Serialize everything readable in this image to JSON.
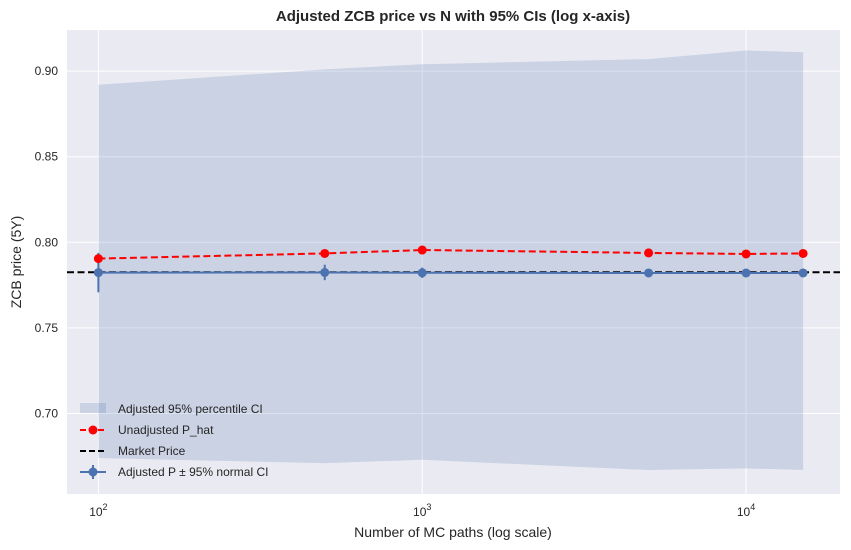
{
  "chart_data": {
    "type": "line",
    "title": "Adjusted ZCB price vs N with 95% CIs (log x-axis)",
    "xlabel": "Number of MC paths (log scale)",
    "ylabel": "ZCB price (5Y)",
    "xscale": "log",
    "xlim": [
      80,
      19500
    ],
    "ylim": [
      0.653,
      0.924
    ],
    "x_ticks": [
      100,
      1000,
      10000
    ],
    "x_tick_labels": [
      {
        "base": "10",
        "exp": "2"
      },
      {
        "base": "10",
        "exp": "3"
      },
      {
        "base": "10",
        "exp": "4"
      }
    ],
    "y_ticks": [
      0.7,
      0.75,
      0.8,
      0.85,
      0.9
    ],
    "y_tick_labels": [
      "0.70",
      "0.75",
      "0.80",
      "0.85",
      "0.90"
    ],
    "grid": true,
    "legend_position": "lower-left",
    "x": [
      100,
      500,
      1000,
      5000,
      10000,
      15000
    ],
    "series": [
      {
        "name": "Adjusted 95% percentile CI",
        "kind": "band",
        "color": "#4c72b0",
        "lower": [
          0.674,
          0.671,
          0.673,
          0.667,
          0.668,
          0.667
        ],
        "upper": [
          0.892,
          0.901,
          0.904,
          0.907,
          0.912,
          0.911
        ]
      },
      {
        "name": "Unadjusted P_hat",
        "kind": "line",
        "style": "dashed",
        "marker": "circle",
        "color": "#ff0000",
        "values": [
          0.7905,
          0.7935,
          0.7955,
          0.7938,
          0.7932,
          0.7935
        ],
        "errors": [
          0.0015,
          0.0008,
          0.0006,
          0.0003,
          0.0002,
          0.0002
        ]
      },
      {
        "name": "Market Price",
        "kind": "hline",
        "style": "dashed",
        "color": "#000000",
        "value": 0.7825
      },
      {
        "name": "Adjusted P ± 95% normal CI",
        "kind": "errorbar",
        "marker": "circle",
        "color": "#4c72b0",
        "values": [
          0.7823,
          0.7824,
          0.7822,
          0.7821,
          0.7821,
          0.7821
        ],
        "errors": [
          0.0115,
          0.0045,
          0.003,
          0.0012,
          0.0008,
          0.0007
        ]
      }
    ]
  }
}
